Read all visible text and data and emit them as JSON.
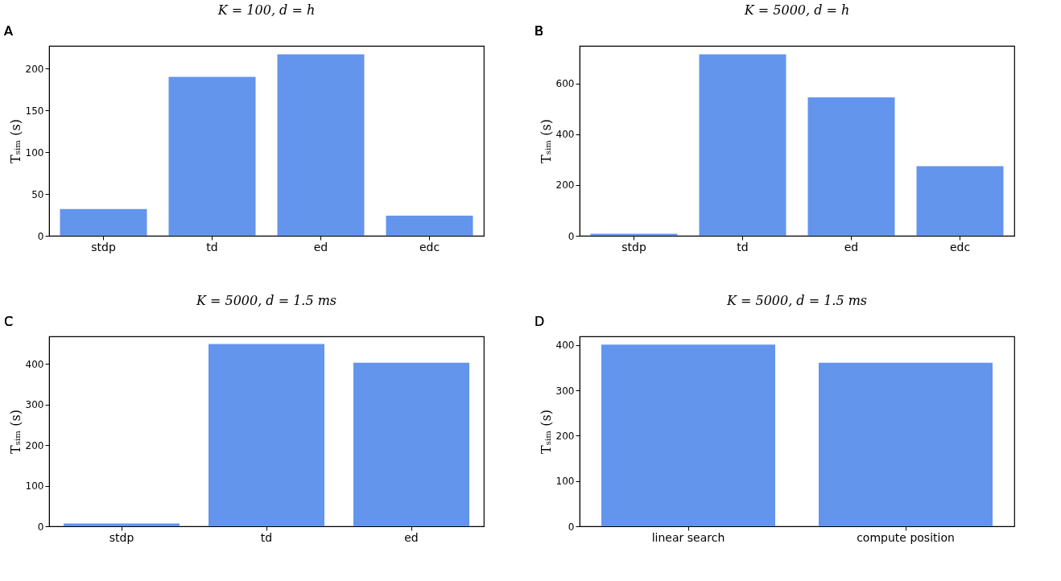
{
  "chart_data": [
    {
      "type": "bar",
      "title": "K = 100, d = h",
      "ylabel": "Tₛᵢₘ (s)",
      "annotations": [
        "A"
      ],
      "categories": [
        "stdp",
        "td",
        "ed",
        "edc"
      ],
      "values": [
        32,
        190,
        217,
        24
      ],
      "color": "#6495ed",
      "ylim": [
        0,
        227
      ],
      "yticks": [
        0,
        50,
        100,
        150,
        200
      ]
    },
    {
      "type": "bar",
      "title": "K = 5000, d = h",
      "ylabel": "Tₛᵢₘ (s)",
      "annotations": [
        "B"
      ],
      "categories": [
        "stdp",
        "td",
        "ed",
        "edc"
      ],
      "values": [
        8,
        715,
        545,
        274
      ],
      "color": "#6495ed",
      "ylim": [
        0,
        748
      ],
      "yticks": [
        0,
        200,
        400,
        600
      ]
    },
    {
      "type": "bar",
      "title": "K = 5000, d = 1.5 ms",
      "ylabel": "Tₛᵢₘ (s)",
      "annotations": [
        "C"
      ],
      "categories": [
        "stdp",
        "td",
        "ed"
      ],
      "values": [
        7,
        449,
        403
      ],
      "color": "#6495ed",
      "ylim": [
        0,
        468
      ],
      "yticks": [
        0,
        100,
        200,
        300,
        400
      ]
    },
    {
      "type": "bar",
      "title": "K = 5000, d = 1.5 ms",
      "ylabel": "Tₛᵢₘ (s)",
      "annotations": [
        "D"
      ],
      "categories": [
        "linear search",
        "compute position"
      ],
      "values": [
        401,
        361
      ],
      "color": "#6495ed",
      "ylim": [
        0,
        419
      ],
      "yticks": [
        0,
        100,
        200,
        300,
        400
      ]
    }
  ]
}
